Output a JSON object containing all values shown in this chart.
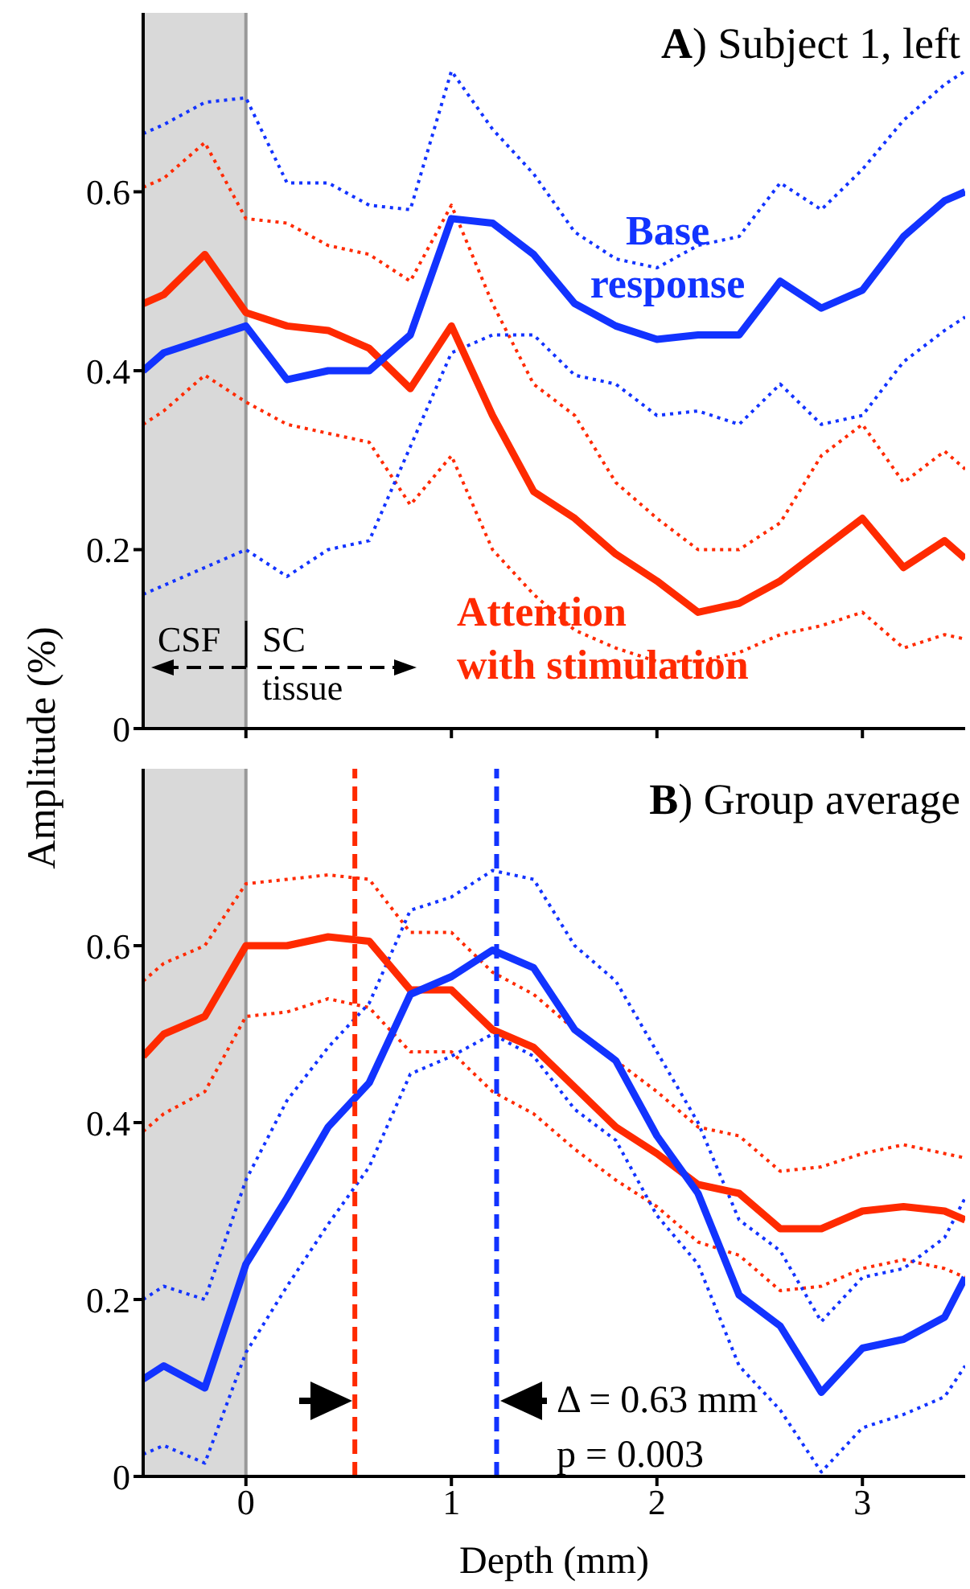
{
  "chart_data": [
    {
      "type": "line",
      "title": "A) Subject 1, left",
      "ylabel": "Amplitude (%)",
      "x": [
        -0.5,
        -0.4,
        -0.2,
        0,
        0.2,
        0.4,
        0.6,
        0.8,
        1.0,
        1.2,
        1.4,
        1.6,
        1.8,
        2.0,
        2.2,
        2.4,
        2.6,
        2.8,
        3.0,
        3.2,
        3.4,
        3.5
      ],
      "xlim": [
        -0.5,
        3.5
      ],
      "xticks": [
        0,
        1,
        2,
        3
      ],
      "ylim": [
        0,
        0.8
      ],
      "yticks": [
        0,
        0.2,
        0.4,
        0.6
      ],
      "tick_labels": "y",
      "line_style": "solid",
      "bands": [
        {
          "axis": "x",
          "from": -0.5,
          "to": 0,
          "color": "#d9d9d9"
        }
      ],
      "annotations": [
        "CSF",
        "SC tissue"
      ],
      "series": [
        {
          "name": "Base response",
          "color": "#1233ff",
          "values": [
            0.4,
            0.42,
            0.435,
            0.45,
            0.39,
            0.4,
            0.4,
            0.44,
            0.57,
            0.565,
            0.53,
            0.475,
            0.45,
            0.435,
            0.44,
            0.44,
            0.5,
            0.47,
            0.49,
            0.55,
            0.59,
            0.6
          ]
        },
        {
          "name": "Attention with stimulation",
          "color": "#ff2a00",
          "values": [
            0.475,
            0.485,
            0.53,
            0.465,
            0.45,
            0.445,
            0.425,
            0.38,
            0.45,
            0.35,
            0.265,
            0.235,
            0.195,
            0.165,
            0.13,
            0.14,
            0.165,
            0.2,
            0.235,
            0.18,
            0.21,
            0.19
          ]
        },
        {
          "color": "#1233ff",
          "line_style": "dotted",
          "values": [
            0.665,
            0.675,
            0.7,
            0.705,
            0.61,
            0.61,
            0.585,
            0.58,
            0.735,
            0.67,
            0.62,
            0.555,
            0.525,
            0.515,
            0.54,
            0.55,
            0.61,
            0.58,
            0.625,
            0.68,
            0.72,
            0.735
          ]
        },
        {
          "color": "#1233ff",
          "line_style": "dotted",
          "values": [
            0.15,
            0.16,
            0.18,
            0.2,
            0.17,
            0.2,
            0.21,
            0.315,
            0.42,
            0.44,
            0.44,
            0.395,
            0.385,
            0.35,
            0.355,
            0.34,
            0.385,
            0.34,
            0.35,
            0.41,
            0.445,
            0.46
          ]
        },
        {
          "color": "#ff2a00",
          "line_style": "dotted",
          "values": [
            0.605,
            0.615,
            0.655,
            0.57,
            0.565,
            0.54,
            0.53,
            0.5,
            0.585,
            0.475,
            0.385,
            0.35,
            0.275,
            0.235,
            0.2,
            0.2,
            0.23,
            0.305,
            0.34,
            0.275,
            0.31,
            0.29
          ]
        },
        {
          "color": "#ff2a00",
          "line_style": "dotted",
          "values": [
            0.34,
            0.355,
            0.395,
            0.365,
            0.34,
            0.33,
            0.32,
            0.25,
            0.305,
            0.2,
            0.15,
            0.11,
            0.09,
            0.075,
            0.075,
            0.085,
            0.105,
            0.115,
            0.13,
            0.09,
            0.105,
            0.1
          ]
        }
      ]
    },
    {
      "type": "line",
      "title": "B) Group average",
      "xlabel": "Depth (mm)",
      "x": [
        -0.5,
        -0.4,
        -0.2,
        0,
        0.2,
        0.4,
        0.6,
        0.8,
        1.0,
        1.2,
        1.4,
        1.6,
        1.8,
        2.0,
        2.2,
        2.4,
        2.6,
        2.8,
        3.0,
        3.2,
        3.4,
        3.5
      ],
      "xlim": [
        -0.5,
        3.5
      ],
      "xticks": [
        0,
        1,
        2,
        3
      ],
      "ylim": [
        0,
        0.8
      ],
      "yticks": [
        0,
        0.2,
        0.4,
        0.6
      ],
      "line_style": "solid",
      "bands": [
        {
          "axis": "x",
          "from": -0.5,
          "to": 0,
          "color": "#d9d9d9"
        }
      ],
      "ref_lines": [
        {
          "axis": "x",
          "value": 0.53,
          "color": "#ff2a00",
          "line_style": "dashed"
        },
        {
          "axis": "x",
          "value": 1.22,
          "color": "#1233ff",
          "line_style": "dashed"
        }
      ],
      "annotations": [
        "Δ = 0.63 mm",
        "p = 0.003"
      ],
      "series": [
        {
          "color": "#1233ff",
          "values": [
            0.11,
            0.125,
            0.1,
            0.24,
            0.315,
            0.395,
            0.445,
            0.545,
            0.565,
            0.595,
            0.575,
            0.505,
            0.47,
            0.385,
            0.32,
            0.205,
            0.17,
            0.095,
            0.145,
            0.155,
            0.18,
            0.225
          ]
        },
        {
          "color": "#ff2a00",
          "values": [
            0.475,
            0.5,
            0.52,
            0.6,
            0.6,
            0.61,
            0.605,
            0.55,
            0.55,
            0.505,
            0.485,
            0.44,
            0.395,
            0.365,
            0.33,
            0.32,
            0.28,
            0.28,
            0.3,
            0.305,
            0.3,
            0.29
          ]
        },
        {
          "color": "#1233ff",
          "line_style": "dotted",
          "values": [
            0.2,
            0.215,
            0.2,
            0.335,
            0.425,
            0.485,
            0.535,
            0.64,
            0.655,
            0.685,
            0.675,
            0.6,
            0.56,
            0.48,
            0.4,
            0.29,
            0.255,
            0.175,
            0.225,
            0.235,
            0.27,
            0.315
          ]
        },
        {
          "color": "#1233ff",
          "line_style": "dotted",
          "values": [
            0.025,
            0.035,
            0.015,
            0.14,
            0.215,
            0.285,
            0.35,
            0.455,
            0.475,
            0.5,
            0.475,
            0.415,
            0.38,
            0.295,
            0.24,
            0.125,
            0.075,
            0.005,
            0.055,
            0.07,
            0.09,
            0.125
          ]
        },
        {
          "color": "#ff2a00",
          "line_style": "dotted",
          "values": [
            0.56,
            0.58,
            0.6,
            0.67,
            0.675,
            0.68,
            0.675,
            0.615,
            0.615,
            0.57,
            0.545,
            0.505,
            0.47,
            0.435,
            0.395,
            0.385,
            0.345,
            0.35,
            0.365,
            0.375,
            0.365,
            0.36
          ]
        },
        {
          "color": "#ff2a00",
          "line_style": "dotted",
          "values": [
            0.39,
            0.41,
            0.435,
            0.52,
            0.525,
            0.54,
            0.53,
            0.48,
            0.48,
            0.435,
            0.41,
            0.37,
            0.335,
            0.305,
            0.265,
            0.25,
            0.21,
            0.215,
            0.235,
            0.245,
            0.235,
            0.225
          ]
        }
      ]
    }
  ]
}
